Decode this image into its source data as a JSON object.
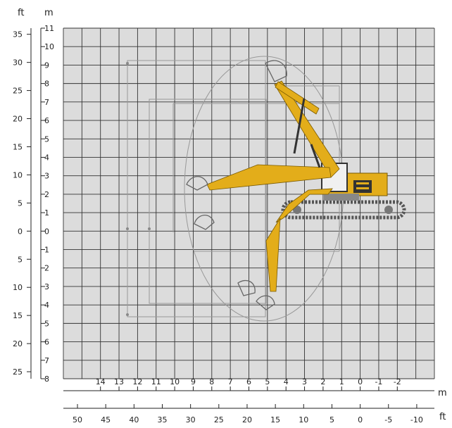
{
  "units": {
    "left_outer": "ft",
    "left_inner": "m",
    "bottom_inner": "m",
    "bottom_outer": "ft"
  },
  "y_ft_labels": [
    "35",
    "30",
    "25",
    "20",
    "15",
    "10",
    "5",
    "0",
    "5",
    "10",
    "15",
    "20",
    "25"
  ],
  "y_m_labels": [
    "11",
    "10",
    "9",
    "8",
    "7",
    "6",
    "5",
    "4",
    "3",
    "2",
    "1",
    "0",
    "1",
    "2",
    "3",
    "4",
    "5",
    "6",
    "7",
    "8"
  ],
  "x_m_labels": [
    "14",
    "13",
    "12",
    "11",
    "10",
    "9",
    "8",
    "7",
    "6",
    "5",
    "4",
    "3",
    "2",
    "1",
    "0",
    "-1",
    "-2"
  ],
  "x_ft_labels": [
    "50",
    "45",
    "40",
    "35",
    "30",
    "25",
    "20",
    "15",
    "10",
    "5",
    "0",
    "-5",
    "-10"
  ],
  "colors": {
    "background": "#ffffff",
    "chart_bg": "#dcdcdc",
    "grid": "#333333",
    "boom": "#e3ad1a",
    "tracks": "#555555"
  },
  "icons": [
    "excavator-icon",
    "bucket-icon"
  ]
}
